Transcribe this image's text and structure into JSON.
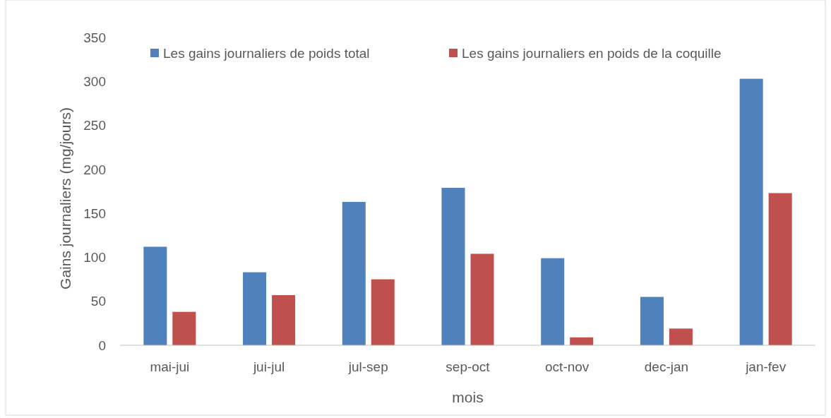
{
  "chart_data": {
    "type": "bar",
    "xlabel": "mois",
    "ylabel": "Gains journaliers (mg/jours)",
    "categories": [
      "mai-jui",
      "jui-jul",
      "jul-sep",
      "sep-oct",
      "oct-nov",
      "dec-jan",
      "jan-fev"
    ],
    "series": [
      {
        "name": "Les gains journaliers de poids total",
        "color": "#4f81bd",
        "values": [
          112,
          83,
          163,
          179,
          99,
          55,
          303
        ]
      },
      {
        "name": "Les gains journaliers en poids de la coquille",
        "color": "#c0504d",
        "values": [
          38,
          57,
          75,
          104,
          9,
          19,
          173
        ]
      }
    ],
    "ylim": [
      0,
      350
    ],
    "yticks": [
      0,
      50,
      100,
      150,
      200,
      250,
      300,
      350
    ],
    "grid": false,
    "legend": "top"
  }
}
